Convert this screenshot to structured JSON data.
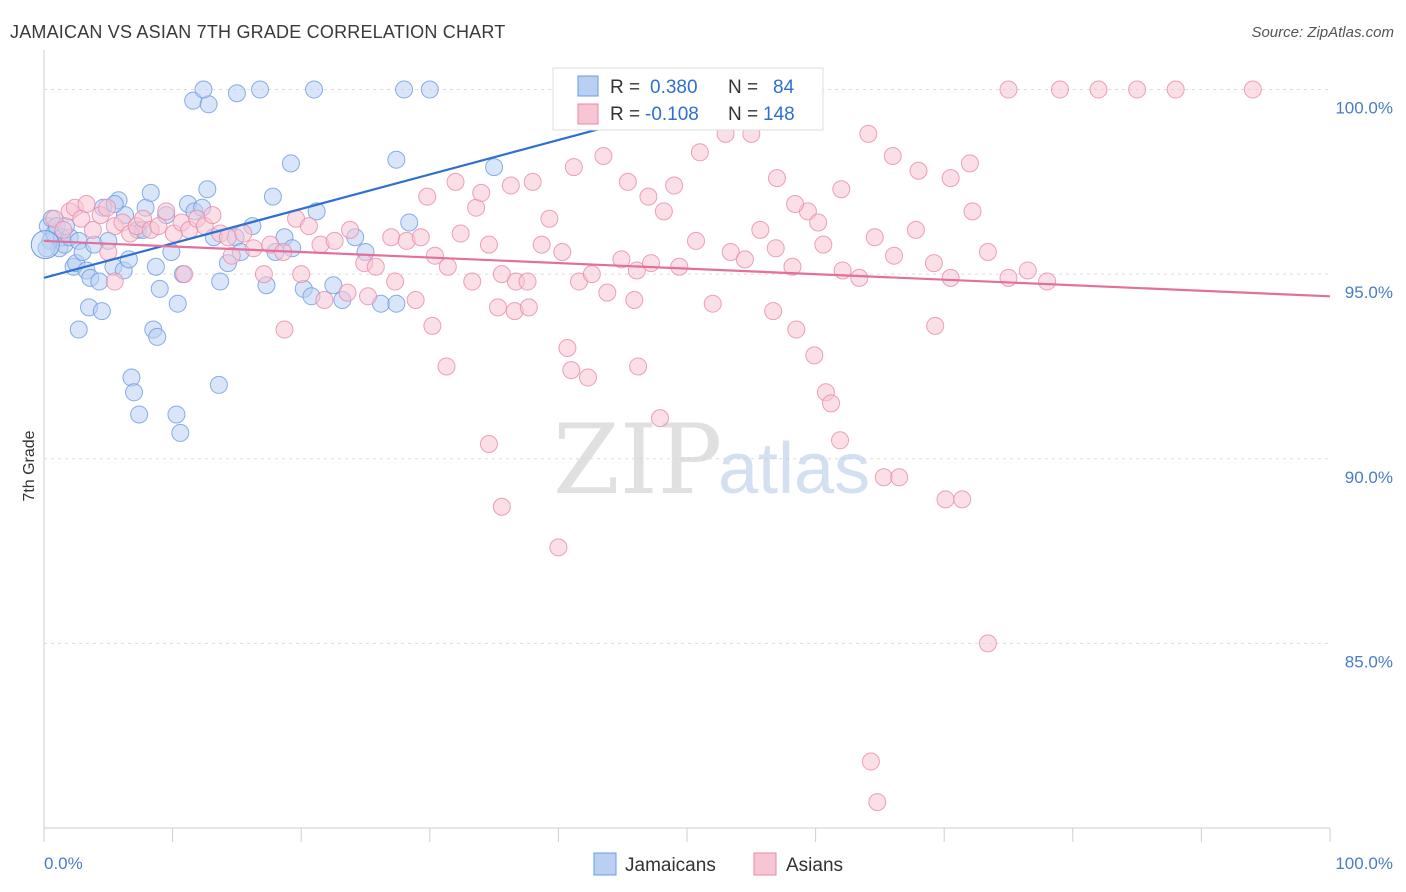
{
  "title": "JAMAICAN VS ASIAN 7TH GRADE CORRELATION CHART",
  "source": "Source: ZipAtlas.com",
  "watermark": {
    "zip": "ZIP",
    "atlas": "atlas"
  },
  "colors": {
    "blue": "#6b9be0",
    "blue_fill": "#b9d0f3",
    "blue_line": "#2f6fd0",
    "pink": "#e98aaa",
    "pink_fill": "#f7c5d4",
    "pink_line": "#e2709a",
    "tick": "#4a7cc7"
  },
  "stats": [
    {
      "r_label": "R =",
      "r_value": "0.380",
      "n_label": "N =",
      "n_value": "84"
    },
    {
      "r_label": "R =",
      "r_value": "-0.108",
      "n_label": "N =",
      "n_value": "148"
    }
  ],
  "chart_data": {
    "type": "scatter",
    "title": "JAMAICAN VS ASIAN 7TH GRADE CORRELATION CHART",
    "xlabel": "",
    "ylabel": "7th Grade",
    "xlim": [
      0,
      100
    ],
    "ylim": [
      80,
      100.8
    ],
    "x_ticks": [
      "0.0%",
      "100.0%"
    ],
    "y_ticks": [
      {
        "value": 100,
        "label": "100.0%"
      },
      {
        "value": 95,
        "label": "95.0%"
      },
      {
        "value": 90,
        "label": "90.0%"
      },
      {
        "value": 85,
        "label": "85.0%"
      }
    ],
    "legend": [
      "Jamaicans",
      "Asians"
    ],
    "legend_position": "bottom-center",
    "grid": true,
    "series": [
      {
        "name": "Jamaicans",
        "r": 0.38,
        "n": 84,
        "trend": {
          "x": [
            0,
            60
          ],
          "y": [
            94.9,
            100.5
          ]
        },
        "points": [
          [
            0.3,
            96.3
          ],
          [
            0.5,
            95.9
          ],
          [
            0.6,
            96.5
          ],
          [
            0.8,
            96.1
          ],
          [
            1.0,
            96.3
          ],
          [
            1.2,
            95.7
          ],
          [
            1.4,
            96.0
          ],
          [
            1.6,
            95.8
          ],
          [
            2.0,
            96.0
          ],
          [
            2.3,
            95.2
          ],
          [
            2.5,
            95.3
          ],
          [
            2.7,
            95.9
          ],
          [
            3.0,
            95.6
          ],
          [
            3.3,
            95.1
          ],
          [
            3.6,
            94.9
          ],
          [
            3.9,
            95.8
          ],
          [
            4.3,
            94.8
          ],
          [
            4.6,
            96.8
          ],
          [
            5.0,
            95.9
          ],
          [
            5.4,
            95.2
          ],
          [
            5.8,
            97.0
          ],
          [
            6.2,
            95.1
          ],
          [
            6.6,
            95.4
          ],
          [
            7.3,
            96.2
          ],
          [
            7.7,
            96.2
          ],
          [
            7.9,
            96.8
          ],
          [
            8.3,
            97.2
          ],
          [
            8.7,
            95.2
          ],
          [
            9.0,
            94.6
          ],
          [
            9.5,
            96.6
          ],
          [
            9.9,
            95.6
          ],
          [
            10.4,
            94.2
          ],
          [
            10.8,
            95.0
          ],
          [
            11.2,
            96.9
          ],
          [
            11.7,
            96.7
          ],
          [
            12.3,
            96.8
          ],
          [
            12.7,
            97.3
          ],
          [
            13.2,
            96.0
          ],
          [
            13.7,
            94.8
          ],
          [
            14.3,
            95.3
          ],
          [
            14.9,
            96.0
          ],
          [
            15.3,
            95.6
          ],
          [
            16.2,
            96.3
          ],
          [
            17.3,
            94.7
          ],
          [
            18.0,
            95.6
          ],
          [
            18.7,
            96.0
          ],
          [
            19.3,
            95.7
          ],
          [
            20.2,
            94.6
          ],
          [
            20.8,
            94.4
          ],
          [
            21.2,
            96.7
          ],
          [
            22.5,
            94.7
          ],
          [
            23.2,
            94.3
          ],
          [
            24.2,
            96.0
          ],
          [
            25.0,
            95.6
          ],
          [
            26.2,
            94.2
          ],
          [
            27.4,
            94.2
          ],
          [
            28.4,
            96.4
          ],
          [
            8.5,
            93.5
          ],
          [
            8.8,
            93.3
          ],
          [
            6.8,
            92.2
          ],
          [
            7.0,
            91.8
          ],
          [
            7.4,
            91.2
          ],
          [
            10.3,
            91.2
          ],
          [
            10.6,
            90.7
          ],
          [
            3.5,
            94.1
          ],
          [
            4.5,
            94.0
          ],
          [
            2.7,
            93.5
          ],
          [
            13.6,
            92.0
          ],
          [
            17.8,
            97.1
          ],
          [
            19.2,
            98.0
          ],
          [
            11.6,
            99.7
          ],
          [
            12.8,
            99.6
          ],
          [
            15.0,
            99.9
          ],
          [
            21.0,
            100.0
          ],
          [
            28.0,
            100.0
          ],
          [
            30.0,
            100.0
          ],
          [
            27.4,
            98.1
          ],
          [
            35.0,
            97.9
          ],
          [
            16.8,
            100.0
          ],
          [
            12.4,
            100.0
          ],
          [
            6.3,
            96.6
          ],
          [
            5.5,
            96.9
          ],
          [
            1.7,
            96.3
          ],
          [
            0.2,
            95.7
          ]
        ]
      },
      {
        "name": "Asians",
        "r": -0.108,
        "n": 148,
        "trend": {
          "x": [
            0,
            100
          ],
          "y": [
            95.9,
            94.4
          ]
        },
        "points": [
          [
            0.8,
            96.5
          ],
          [
            1.5,
            96.2
          ],
          [
            2.0,
            96.7
          ],
          [
            2.4,
            96.8
          ],
          [
            2.9,
            96.5
          ],
          [
            3.3,
            96.9
          ],
          [
            3.8,
            96.2
          ],
          [
            4.4,
            96.6
          ],
          [
            4.9,
            96.8
          ],
          [
            5.5,
            96.3
          ],
          [
            6.1,
            96.4
          ],
          [
            6.7,
            96.1
          ],
          [
            7.2,
            96.3
          ],
          [
            7.7,
            96.5
          ],
          [
            8.3,
            96.2
          ],
          [
            8.9,
            96.3
          ],
          [
            9.5,
            96.7
          ],
          [
            10.1,
            96.1
          ],
          [
            10.7,
            96.4
          ],
          [
            11.3,
            96.2
          ],
          [
            11.9,
            96.5
          ],
          [
            12.5,
            96.3
          ],
          [
            13.1,
            96.6
          ],
          [
            13.7,
            96.1
          ],
          [
            14.3,
            96.0
          ],
          [
            15.5,
            96.1
          ],
          [
            16.3,
            95.7
          ],
          [
            17.6,
            95.8
          ],
          [
            18.6,
            95.6
          ],
          [
            19.6,
            96.5
          ],
          [
            20.6,
            96.3
          ],
          [
            21.5,
            95.8
          ],
          [
            22.6,
            95.9
          ],
          [
            23.8,
            96.2
          ],
          [
            24.9,
            95.3
          ],
          [
            25.8,
            95.2
          ],
          [
            27.0,
            96.0
          ],
          [
            28.2,
            95.9
          ],
          [
            29.3,
            96.0
          ],
          [
            30.4,
            95.5
          ],
          [
            31.4,
            95.2
          ],
          [
            32.4,
            96.1
          ],
          [
            33.6,
            96.8
          ],
          [
            34.6,
            95.8
          ],
          [
            35.6,
            95.0
          ],
          [
            36.7,
            94.8
          ],
          [
            37.6,
            94.8
          ],
          [
            38.7,
            95.8
          ],
          [
            40.3,
            95.6
          ],
          [
            41.6,
            94.8
          ],
          [
            42.6,
            95.0
          ],
          [
            43.8,
            94.5
          ],
          [
            44.9,
            95.4
          ],
          [
            46.1,
            95.1
          ],
          [
            47.2,
            95.3
          ],
          [
            48.2,
            96.7
          ],
          [
            49.4,
            95.2
          ],
          [
            50.7,
            95.9
          ],
          [
            52.0,
            94.2
          ],
          [
            53.4,
            95.6
          ],
          [
            54.5,
            95.4
          ],
          [
            55.7,
            96.2
          ],
          [
            56.9,
            95.7
          ],
          [
            58.2,
            95.2
          ],
          [
            59.4,
            96.7
          ],
          [
            60.6,
            95.8
          ],
          [
            62.1,
            95.1
          ],
          [
            63.4,
            94.9
          ],
          [
            64.6,
            96.0
          ],
          [
            66.1,
            95.5
          ],
          [
            67.8,
            96.2
          ],
          [
            69.2,
            95.3
          ],
          [
            70.5,
            94.9
          ],
          [
            72.2,
            96.7
          ],
          [
            73.4,
            95.6
          ],
          [
            75.0,
            94.9
          ],
          [
            76.5,
            95.1
          ],
          [
            78.0,
            94.8
          ],
          [
            5.0,
            95.6
          ],
          [
            5.5,
            94.8
          ],
          [
            10.9,
            95.0
          ],
          [
            14.6,
            95.5
          ],
          [
            17.1,
            95.0
          ],
          [
            18.7,
            93.5
          ],
          [
            20.0,
            95.0
          ],
          [
            21.8,
            94.3
          ],
          [
            23.6,
            94.5
          ],
          [
            25.2,
            94.4
          ],
          [
            27.3,
            94.8
          ],
          [
            28.9,
            94.3
          ],
          [
            30.2,
            93.6
          ],
          [
            31.3,
            92.5
          ],
          [
            33.3,
            94.8
          ],
          [
            35.3,
            94.1
          ],
          [
            36.6,
            94.0
          ],
          [
            37.7,
            94.1
          ],
          [
            40.7,
            93.0
          ],
          [
            41.0,
            92.4
          ],
          [
            42.3,
            92.2
          ],
          [
            45.9,
            94.3
          ],
          [
            46.2,
            92.5
          ],
          [
            47.9,
            91.1
          ],
          [
            56.7,
            94.0
          ],
          [
            58.5,
            93.5
          ],
          [
            59.9,
            92.8
          ],
          [
            60.8,
            91.8
          ],
          [
            61.2,
            91.5
          ],
          [
            61.9,
            90.5
          ],
          [
            65.3,
            89.5
          ],
          [
            66.5,
            89.5
          ],
          [
            69.3,
            93.6
          ],
          [
            70.1,
            88.9
          ],
          [
            71.4,
            88.9
          ],
          [
            73.4,
            85.0
          ],
          [
            64.3,
            81.8
          ],
          [
            64.8,
            80.7
          ],
          [
            34.6,
            90.4
          ],
          [
            35.6,
            88.7
          ],
          [
            40.0,
            87.6
          ],
          [
            29.8,
            97.1
          ],
          [
            32.0,
            97.5
          ],
          [
            34.0,
            97.2
          ],
          [
            36.3,
            97.4
          ],
          [
            38.0,
            97.5
          ],
          [
            39.3,
            96.5
          ],
          [
            41.2,
            97.9
          ],
          [
            43.5,
            98.2
          ],
          [
            45.4,
            97.5
          ],
          [
            47.0,
            97.1
          ],
          [
            49.0,
            97.4
          ],
          [
            51.0,
            98.3
          ],
          [
            53.0,
            98.8
          ],
          [
            55.0,
            98.8
          ],
          [
            57.0,
            97.6
          ],
          [
            58.4,
            96.9
          ],
          [
            60.2,
            96.4
          ],
          [
            62.0,
            97.3
          ],
          [
            64.1,
            98.8
          ],
          [
            66.0,
            98.2
          ],
          [
            68.0,
            97.8
          ],
          [
            70.5,
            97.6
          ],
          [
            72.0,
            98.0
          ],
          [
            75.0,
            100.0
          ],
          [
            79.0,
            100.0
          ],
          [
            82.0,
            100.0
          ],
          [
            85.0,
            100.0
          ],
          [
            88.0,
            100.0
          ],
          [
            94.0,
            100.0
          ]
        ]
      }
    ]
  }
}
